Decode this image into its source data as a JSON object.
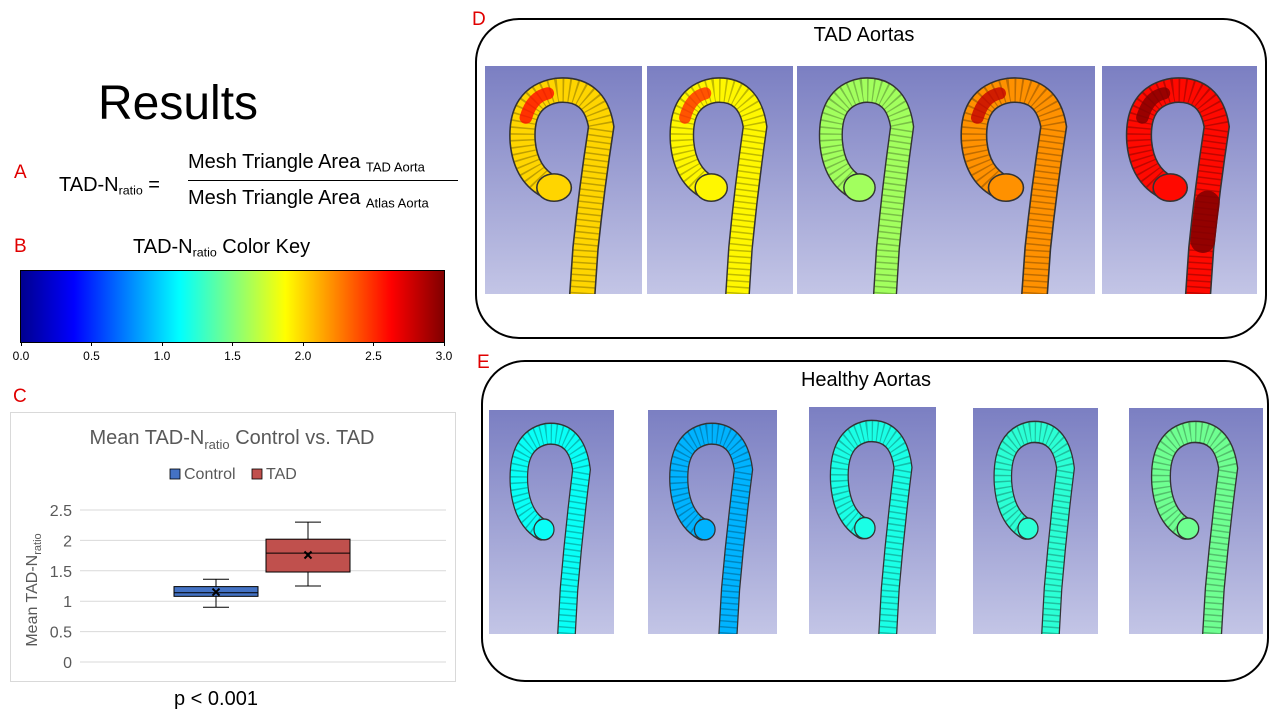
{
  "title": "Results",
  "panel_letters": {
    "a": "A",
    "b": "B",
    "c": "C",
    "d": "D",
    "e": "E"
  },
  "formula": {
    "lhs_main": "TAD-N",
    "lhs_sub": "ratio",
    "equals": "=",
    "numerator_main": "Mesh Triangle Area",
    "numerator_sub": "TAD Aorta",
    "denominator_main": "Mesh Triangle Area",
    "denominator_sub": "Atlas Aorta"
  },
  "color_key": {
    "title_main": "TAD-N",
    "title_sub": "ratio",
    "title_rest": " Color Key",
    "ticks": [
      "0.0",
      "0.5",
      "1.0",
      "1.5",
      "2.0",
      "2.5",
      "3.0"
    ],
    "range": [
      0,
      3
    ],
    "colormap": "jet"
  },
  "chart_data": {
    "type": "box",
    "title_main": "Mean TAD-N",
    "title_sub": "ratio",
    "title_rest": " Control vs. TAD",
    "ylabel_main": "Mean TAD-N",
    "ylabel_sub": "ratio",
    "ylim": [
      0,
      2.5
    ],
    "yticks": [
      "0",
      "0.5",
      "1",
      "1.5",
      "2",
      "2.5"
    ],
    "grid": true,
    "legend_position": "top",
    "series": [
      {
        "name": "Control",
        "color": "#4472c4",
        "min": 0.9,
        "q1": 1.08,
        "median": 1.14,
        "q3": 1.24,
        "max": 1.36,
        "mean": 1.15
      },
      {
        "name": "TAD",
        "color": "#c0504d",
        "min": 1.25,
        "q1": 1.48,
        "median": 1.79,
        "q3": 2.02,
        "max": 2.3,
        "mean": 1.76
      }
    ]
  },
  "p_value": "p < 0.001",
  "panel_d": {
    "title": "TAD Aortas",
    "images": [
      {
        "name": "tad-aorta-1",
        "level": 2.0
      },
      {
        "name": "tad-aorta-2",
        "level": 1.9
      },
      {
        "name": "tad-aorta-3",
        "level": 1.6
      },
      {
        "name": "tad-aorta-4",
        "level": 2.2
      },
      {
        "name": "tad-aorta-5",
        "level": 2.6
      }
    ]
  },
  "panel_e": {
    "title": "Healthy Aortas",
    "images": [
      {
        "name": "healthy-aorta-1",
        "level": 1.15
      },
      {
        "name": "healthy-aorta-2",
        "level": 0.9
      },
      {
        "name": "healthy-aorta-3",
        "level": 1.2
      },
      {
        "name": "healthy-aorta-4",
        "level": 1.25
      },
      {
        "name": "healthy-aorta-5",
        "level": 1.45
      }
    ]
  }
}
